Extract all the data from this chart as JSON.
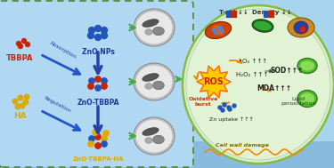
{
  "bg_left_color": "#a8d4ee",
  "bg_right_color": "#d8eecc",
  "bg_bottom_color": "#88bbdd",
  "dash_border_color": "#5a8a3a",
  "left_panel": {
    "tbbpa_label": "TBBPA",
    "tbbpa_color": "#cc2200",
    "ha_label": "HA",
    "ha_color": "#ddaa00",
    "znp_label": "ZnO NPs",
    "znp_color": "#1a3a9a",
    "znotbbpa_label": "ZnO-TBBPA",
    "znotbbpa_color": "#1a3a9a",
    "znotbbpaha_label": "ZnO-TBBPA-HA",
    "znotbbpaha_color": "#ddaa00",
    "absorption_label": "Absorption",
    "regulation_label": "Regulation",
    "arrow_color": "#2244aa",
    "arrow_color2": "#3366cc"
  },
  "right_panel": {
    "ros_label": "ROS",
    "ros_color": "#cc2200",
    "ros_bg": "#ffcc00",
    "ros_border": "#ff6600",
    "oxidative_label": "Oxidative\nburst",
    "oxidative_color": "#cc3300",
    "o2_label": "•O₂",
    "h2o2_label": "H₂O₂",
    "zn_uptake_label": "Zn uptake",
    "cell_wall_label": "Cell wall damage",
    "tchl_label": "T-chl",
    "density_label": "Density",
    "sod_label": "SOD",
    "mda_label": "MDA",
    "lipid_label": "Lipid\nperoxidation",
    "arrow_color_orange": "#ee8800",
    "border_color": "#88bb44",
    "border_color2": "#aaccaa"
  },
  "figsize": [
    3.75,
    1.89
  ],
  "dpi": 100
}
